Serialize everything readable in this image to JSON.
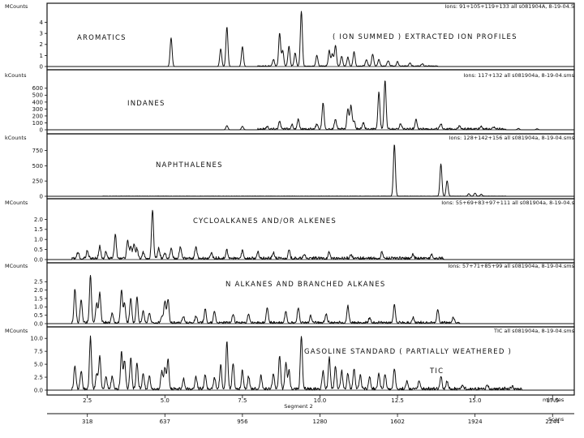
{
  "chart_data": {
    "type": "line",
    "x_axis": {
      "label": "minutes",
      "range": [
        1.2,
        18.2
      ],
      "tick_values": [
        2.5,
        5.0,
        7.5,
        10.0,
        12.5,
        15.0,
        17.5
      ],
      "tick_labels": [
        "2.5",
        "5.0",
        "7.5",
        "10.0",
        "12.5",
        "15.0",
        "17.5"
      ],
      "segment_label": "Segment 2"
    },
    "scan_axis": {
      "label": "Scans",
      "tick_values": [
        2.5,
        5.0,
        7.5,
        10.0,
        12.5,
        15.0,
        17.5
      ],
      "tick_labels": [
        "318",
        "637",
        "956",
        "1280",
        "1602",
        "1924",
        "2244"
      ]
    },
    "panels": [
      {
        "name": "AROMATICS",
        "title": "AROMATICS",
        "subtitle": "( ION SUMMED ) EXTRACTED ION PROFILES",
        "header": "Ions: 91+105+119+133 all s081904A,   8-19-04.5",
        "unit": "MCounts",
        "ylim": [
          0,
          5
        ],
        "yticks": [
          0,
          1,
          2,
          3,
          4
        ],
        "peaks": [
          [
            5.2,
            2.6
          ],
          [
            6.8,
            1.6
          ],
          [
            7.0,
            3.6
          ],
          [
            7.5,
            1.8
          ],
          [
            8.5,
            0.6
          ],
          [
            8.7,
            3.0
          ],
          [
            8.8,
            1.4
          ],
          [
            9.0,
            1.8
          ],
          [
            9.2,
            1.2
          ],
          [
            9.4,
            5.0
          ],
          [
            9.9,
            1.0
          ],
          [
            10.3,
            1.4
          ],
          [
            10.4,
            1.1
          ],
          [
            10.5,
            1.9
          ],
          [
            10.7,
            0.9
          ],
          [
            10.9,
            0.8
          ],
          [
            11.1,
            1.3
          ],
          [
            11.5,
            0.6
          ],
          [
            11.7,
            1.1
          ],
          [
            11.9,
            0.6
          ],
          [
            12.2,
            0.5
          ],
          [
            12.5,
            0.4
          ],
          [
            12.9,
            0.3
          ],
          [
            13.3,
            0.2
          ]
        ],
        "noise": {
          "start": 8.0,
          "end": 13.8,
          "level": 0.1
        }
      },
      {
        "name": "INDANES",
        "title": "INDANES",
        "header": "Ions: 117+132 all s081904a,  8-19-04.sms",
        "unit": "kCounts",
        "ylim": [
          0,
          750
        ],
        "yticks": [
          0,
          100,
          200,
          300,
          400,
          500,
          600
        ],
        "peaks": [
          [
            7.0,
            60
          ],
          [
            7.5,
            50
          ],
          [
            8.3,
            40
          ],
          [
            8.7,
            110
          ],
          [
            9.1,
            60
          ],
          [
            9.3,
            140
          ],
          [
            9.9,
            70
          ],
          [
            10.1,
            380
          ],
          [
            10.5,
            140
          ],
          [
            10.9,
            300
          ],
          [
            11.0,
            340
          ],
          [
            11.1,
            120
          ],
          [
            11.4,
            90
          ],
          [
            11.9,
            520
          ],
          [
            12.1,
            700
          ],
          [
            12.6,
            70
          ],
          [
            13.1,
            140
          ],
          [
            13.9,
            80
          ],
          [
            14.5,
            50
          ],
          [
            15.2,
            40
          ],
          [
            15.6,
            30
          ],
          [
            16.4,
            20
          ],
          [
            17.0,
            15
          ]
        ],
        "noise": {
          "start": 8.0,
          "end": 16.0,
          "level": 30
        }
      },
      {
        "name": "NAPHTHALENES",
        "title": "NAPHTHALENES",
        "header": "Ions: 128+142+156 all s081904a,   8-19-04.sms",
        "unit": "kCounts",
        "ylim": [
          0,
          850
        ],
        "yticks": [
          0,
          250,
          500,
          750
        ],
        "peaks": [
          [
            12.4,
            850
          ],
          [
            13.9,
            530
          ],
          [
            14.1,
            250
          ],
          [
            14.8,
            40
          ],
          [
            15.0,
            50
          ],
          [
            15.2,
            30
          ]
        ],
        "noise": {
          "start": 3.0,
          "end": 16.0,
          "level": 6
        }
      },
      {
        "name": "CYCLOALKANES",
        "title": "CYCLOALKANES AND/OR ALKENES",
        "header": "Ions: 55+69+83+97+111 all s081904a,   8-19-04.s",
        "unit": "MCounts",
        "ylim": [
          0,
          2.5
        ],
        "yticks": [
          0,
          0.5,
          1.0,
          1.5,
          2.0
        ],
        "tick_labels": [
          "0.0",
          "0.5",
          "1.0",
          "1.5",
          "2.0"
        ],
        "peaks": [
          [
            2.2,
            0.3
          ],
          [
            2.5,
            0.4
          ],
          [
            2.9,
            0.6
          ],
          [
            3.1,
            0.3
          ],
          [
            3.4,
            1.2
          ],
          [
            3.8,
            0.9
          ],
          [
            3.9,
            0.6
          ],
          [
            4.0,
            0.7
          ],
          [
            4.1,
            0.5
          ],
          [
            4.3,
            0.3
          ],
          [
            4.6,
            2.4
          ],
          [
            4.8,
            0.5
          ],
          [
            5.0,
            0.3
          ],
          [
            5.2,
            0.5
          ],
          [
            5.5,
            0.6
          ],
          [
            6.0,
            0.6
          ],
          [
            6.5,
            0.3
          ],
          [
            7.0,
            0.4
          ],
          [
            7.5,
            0.4
          ],
          [
            8.0,
            0.3
          ],
          [
            8.5,
            0.3
          ],
          [
            9.0,
            0.4
          ],
          [
            9.5,
            0.2
          ],
          [
            10.3,
            0.3
          ],
          [
            11.0,
            0.2
          ],
          [
            12.0,
            0.3
          ],
          [
            13.0,
            0.2
          ],
          [
            13.6,
            0.2
          ]
        ],
        "noise": {
          "start": 2.0,
          "end": 14.0,
          "level": 0.15
        }
      },
      {
        "name": "N-ALKANES",
        "title": "N ALKANES AND BRANCHED ALKANES",
        "header": "Ions: 57+71+85+99 all s081904a,   8-19-04.sms",
        "unit": "MCounts",
        "ylim": [
          0,
          3
        ],
        "yticks": [
          0,
          0.5,
          1.0,
          1.5,
          2.0,
          2.5
        ],
        "tick_labels": [
          "0.0",
          "0.5",
          "1.0",
          "1.5",
          "2.0",
          "2.5"
        ],
        "peaks": [
          [
            2.1,
            2.0
          ],
          [
            2.3,
            1.4
          ],
          [
            2.6,
            2.8
          ],
          [
            2.8,
            1.2
          ],
          [
            2.9,
            1.8
          ],
          [
            3.3,
            0.6
          ],
          [
            3.6,
            2.0
          ],
          [
            3.7,
            1.2
          ],
          [
            3.9,
            1.5
          ],
          [
            4.1,
            1.5
          ],
          [
            4.3,
            0.7
          ],
          [
            4.5,
            0.6
          ],
          [
            4.9,
            0.4
          ],
          [
            5.0,
            1.3
          ],
          [
            5.1,
            1.4
          ],
          [
            5.6,
            0.4
          ],
          [
            6.0,
            0.4
          ],
          [
            6.3,
            0.8
          ],
          [
            6.6,
            0.7
          ],
          [
            7.2,
            0.5
          ],
          [
            7.7,
            0.5
          ],
          [
            8.3,
            0.9
          ],
          [
            8.9,
            0.7
          ],
          [
            9.3,
            0.9
          ],
          [
            9.7,
            0.4
          ],
          [
            10.2,
            0.5
          ],
          [
            10.9,
            1.0
          ],
          [
            11.6,
            0.3
          ],
          [
            12.4,
            1.1
          ],
          [
            13.0,
            0.3
          ],
          [
            13.8,
            0.8
          ],
          [
            14.3,
            0.3
          ]
        ],
        "noise": {
          "start": 2.0,
          "end": 14.5,
          "level": 0.15
        }
      },
      {
        "name": "TIC",
        "title": "GASOLINE STANDARD ( PARTIALLY WEATHERED )",
        "subtitle": "TIC",
        "header": "TIC all s081904a,   8-19-04.sms",
        "unit": "MCounts",
        "ylim": [
          0,
          10.5
        ],
        "yticks": [
          0,
          2.5,
          5.0,
          7.5,
          10.0
        ],
        "tick_labels": [
          "0.0",
          "2.5",
          "5.0",
          "7.5",
          "10.0"
        ],
        "peaks": [
          [
            2.1,
            4.5
          ],
          [
            2.3,
            3.5
          ],
          [
            2.6,
            10.0
          ],
          [
            2.8,
            3.0
          ],
          [
            2.9,
            6.5
          ],
          [
            3.1,
            2.5
          ],
          [
            3.3,
            2.5
          ],
          [
            3.6,
            7.0
          ],
          [
            3.7,
            5.5
          ],
          [
            3.9,
            6.0
          ],
          [
            4.1,
            5.0
          ],
          [
            4.3,
            3.0
          ],
          [
            4.5,
            2.5
          ],
          [
            4.9,
            3.5
          ],
          [
            5.0,
            4.2
          ],
          [
            5.1,
            5.8
          ],
          [
            5.6,
            2.0
          ],
          [
            6.0,
            2.5
          ],
          [
            6.3,
            2.8
          ],
          [
            6.6,
            2.2
          ],
          [
            6.8,
            4.5
          ],
          [
            7.0,
            9.0
          ],
          [
            7.2,
            5.0
          ],
          [
            7.5,
            3.5
          ],
          [
            7.7,
            2.5
          ],
          [
            8.1,
            2.5
          ],
          [
            8.5,
            3.0
          ],
          [
            8.7,
            6.5
          ],
          [
            8.9,
            5.0
          ],
          [
            9.0,
            3.5
          ],
          [
            9.4,
            10.3
          ],
          [
            10.1,
            3.5
          ],
          [
            10.3,
            6.0
          ],
          [
            10.5,
            4.5
          ],
          [
            10.7,
            3.5
          ],
          [
            10.9,
            3.0
          ],
          [
            11.1,
            4.0
          ],
          [
            11.3,
            2.5
          ],
          [
            11.6,
            2.5
          ],
          [
            11.9,
            3.0
          ],
          [
            12.1,
            3.0
          ],
          [
            12.4,
            4.0
          ],
          [
            12.8,
            1.5
          ],
          [
            13.2,
            1.5
          ],
          [
            13.9,
            2.5
          ],
          [
            14.1,
            1.5
          ],
          [
            14.6,
            0.8
          ],
          [
            15.4,
            0.6
          ],
          [
            16.2,
            0.4
          ]
        ],
        "noise": {
          "start": 2.0,
          "end": 16.5,
          "level": 0.6
        }
      }
    ]
  }
}
